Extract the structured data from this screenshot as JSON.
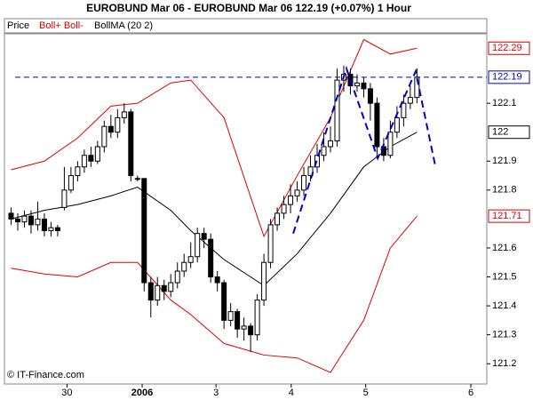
{
  "chart_data": {
    "type": "candlestick",
    "title": "EUROBUND Mar 06 - EUROBUND Mar 06     122.19 (+0.07%)     1 Hour",
    "legend": [
      "Price",
      "Boll+ Boll-",
      "BollMA (20 2)"
    ],
    "footer": "© IT-Finance.com",
    "xlim": [
      -1,
      71.5
    ],
    "ylim": [
      121.13,
      122.34
    ],
    "xticks": [
      {
        "value": 8.4,
        "label": "30"
      },
      {
        "value": 19.7,
        "label": "2006"
      },
      {
        "value": 30.8,
        "label": "3"
      },
      {
        "value": 42.1,
        "label": "4"
      },
      {
        "value": 53.3,
        "label": "5"
      },
      {
        "value": 69.1,
        "label": "6"
      }
    ],
    "yticks": [
      121.2,
      121.3,
      121.4,
      121.5,
      121.6,
      121.8,
      121.9,
      122.1
    ],
    "open": [
      121.72,
      121.7,
      121.69,
      121.71,
      121.68,
      121.7,
      121.66,
      121.67,
      121.74,
      121.8,
      121.85,
      121.88,
      121.92,
      121.9,
      121.95,
      122.02,
      122.0,
      122.05,
      122.07,
      121.84,
      121.84,
      121.48,
      121.42,
      121.47,
      121.45,
      121.48,
      121.52,
      121.55,
      121.57,
      121.65,
      121.63,
      121.5,
      121.48,
      121.35,
      121.38,
      121.32,
      121.33,
      121.3,
      121.42,
      121.55,
      121.68,
      121.72,
      121.75,
      121.78,
      121.8,
      121.85,
      121.88,
      121.92,
      121.95,
      121.97,
      122.18,
      122.2,
      122.16,
      122.17,
      122.15,
      122.1,
      121.95,
      121.92,
      122.0,
      122.05,
      122.1,
      122.12
    ],
    "high": [
      121.74,
      121.72,
      121.73,
      121.73,
      121.76,
      121.72,
      121.69,
      121.68,
      121.88,
      121.88,
      121.9,
      121.94,
      121.95,
      121.97,
      122.04,
      122.06,
      122.08,
      122.1,
      122.08,
      121.85,
      121.84,
      121.5,
      121.5,
      121.49,
      121.51,
      121.55,
      121.58,
      121.62,
      121.67,
      121.67,
      121.65,
      121.52,
      121.49,
      121.41,
      121.39,
      121.36,
      121.34,
      121.44,
      121.58,
      121.7,
      121.74,
      121.78,
      121.82,
      121.83,
      121.88,
      121.92,
      121.96,
      122.0,
      122.02,
      122.22,
      122.23,
      122.22,
      122.2,
      122.19,
      122.17,
      122.12,
      121.98,
      122.04,
      122.09,
      122.13,
      122.16,
      122.22
    ],
    "low": [
      121.68,
      121.66,
      121.67,
      121.65,
      121.66,
      121.64,
      121.64,
      121.64,
      121.73,
      121.79,
      121.83,
      121.86,
      121.88,
      121.89,
      121.93,
      121.98,
      121.98,
      122.03,
      121.83,
      121.83,
      121.45,
      121.36,
      121.4,
      121.42,
      121.43,
      121.46,
      121.5,
      121.53,
      121.55,
      121.6,
      121.48,
      121.45,
      121.32,
      121.33,
      121.29,
      121.28,
      121.24,
      121.28,
      121.4,
      121.53,
      121.66,
      121.7,
      121.72,
      121.76,
      121.78,
      121.83,
      121.86,
      121.9,
      121.93,
      121.95,
      122.14,
      122.13,
      122.14,
      122.12,
      122.04,
      121.91,
      121.9,
      121.91,
      121.98,
      122.02,
      122.08,
      122.1
    ],
    "close": [
      121.7,
      121.69,
      121.71,
      121.68,
      121.7,
      121.66,
      121.67,
      121.66,
      121.8,
      121.85,
      121.88,
      121.92,
      121.9,
      121.95,
      122.02,
      122.0,
      122.05,
      122.07,
      121.85,
      121.84,
      121.48,
      121.42,
      121.47,
      121.45,
      121.48,
      121.52,
      121.55,
      121.57,
      121.65,
      121.63,
      121.5,
      121.48,
      121.35,
      121.38,
      121.32,
      121.33,
      121.3,
      121.42,
      121.55,
      121.68,
      121.72,
      121.75,
      121.78,
      121.8,
      121.85,
      121.88,
      121.92,
      121.95,
      121.97,
      122.18,
      122.2,
      122.16,
      122.17,
      122.15,
      122.1,
      121.95,
      121.92,
      122.0,
      122.05,
      122.1,
      122.12,
      122.19
    ],
    "bands": {
      "x": [
        0,
        5,
        10,
        15,
        19,
        24,
        27,
        32,
        38,
        43,
        48,
        53,
        57,
        61
      ],
      "series": [
        {
          "color": "#dd0000",
          "values": [
            121.87,
            121.9,
            121.98,
            122.09,
            122.1,
            122.17,
            122.18,
            122.05,
            121.64,
            121.85,
            122.05,
            122.32,
            122.27,
            122.29
          ]
        },
        {
          "color": "#000000",
          "values": [
            121.7,
            121.73,
            121.75,
            121.78,
            121.81,
            121.73,
            121.66,
            121.56,
            121.47,
            121.58,
            121.72,
            121.88,
            121.95,
            122.0
          ]
        },
        {
          "color": "#dd0000",
          "values": [
            121.53,
            121.51,
            121.5,
            121.55,
            121.55,
            121.42,
            121.37,
            121.27,
            121.23,
            121.22,
            121.17,
            121.35,
            121.6,
            121.71
          ]
        }
      ]
    },
    "pattern": {
      "color": "#0000cc",
      "x": [
        42.4,
        50.4,
        55.1,
        60.8,
        63.7
      ],
      "y": [
        121.65,
        122.22,
        121.91,
        122.21,
        121.89
      ]
    },
    "badges": [
      {
        "value": 122.29,
        "color": "#dd0000"
      },
      {
        "value": 122.19,
        "color": "#0000cc"
      },
      {
        "value": 122,
        "color": "#000000"
      },
      {
        "value": 121.71,
        "color": "#dd0000"
      }
    ],
    "price_line": {
      "badge": 1
    }
  }
}
